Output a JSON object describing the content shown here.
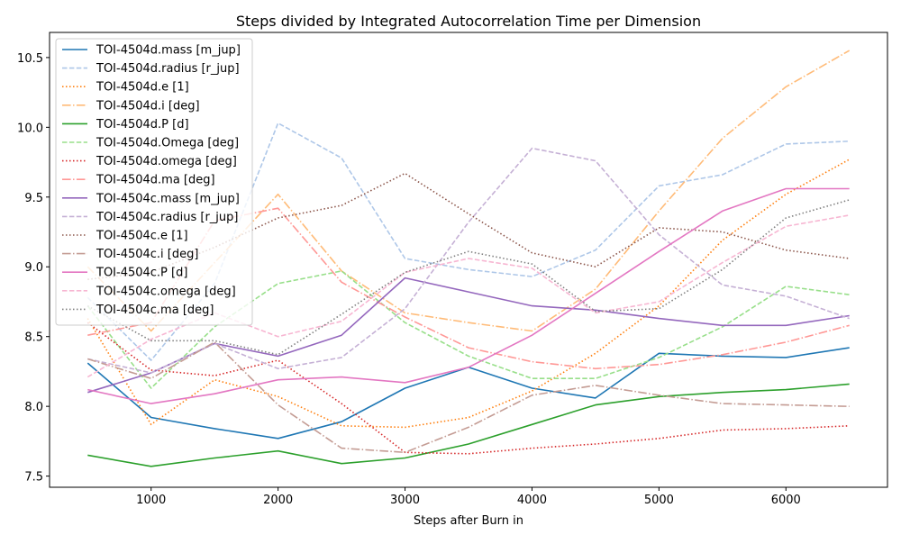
{
  "chart_data": {
    "type": "line",
    "title": "Steps divided by Integrated Autocorrelation Time per Dimension",
    "xlabel": "Steps after Burn in",
    "ylabel": "",
    "xlim": [
      200,
      6800
    ],
    "ylim": [
      7.42,
      10.68
    ],
    "xticks": [
      1000,
      2000,
      3000,
      4000,
      5000,
      6000
    ],
    "yticks": [
      7.5,
      8.0,
      8.5,
      9.0,
      9.5,
      10.0,
      10.5
    ],
    "grid": false,
    "legend_position": "upper-left",
    "x": [
      500,
      1000,
      1500,
      2000,
      2500,
      3000,
      3500,
      4000,
      4500,
      5000,
      5500,
      6000,
      6500
    ],
    "series": [
      {
        "name": "TOI-4504d.mass [m_jup]",
        "color": "#1f77b4",
        "dash": "solid",
        "values": [
          8.31,
          7.92,
          7.84,
          7.77,
          7.89,
          8.13,
          8.28,
          8.13,
          8.06,
          8.38,
          8.36,
          8.35,
          8.42
        ]
      },
      {
        "name": "TOI-4504d.radius [r_jup]",
        "color": "#aec7e8",
        "dash": "dashed",
        "values": [
          8.78,
          8.33,
          8.88,
          10.03,
          9.78,
          9.06,
          8.98,
          8.93,
          9.12,
          9.58,
          9.66,
          9.88,
          9.9
        ]
      },
      {
        "name": "TOI-4504d.e [1]",
        "color": "#ff7f0e",
        "dash": "dotted",
        "values": [
          8.63,
          7.87,
          8.19,
          8.07,
          7.86,
          7.85,
          7.92,
          8.11,
          8.38,
          8.72,
          9.19,
          9.52,
          9.77
        ]
      },
      {
        "name": "TOI-4504d.i [deg]",
        "color": "#ffbb78",
        "dash": "dashdot",
        "values": [
          9.0,
          8.54,
          9.03,
          9.52,
          8.97,
          8.67,
          8.6,
          8.54,
          8.84,
          9.4,
          9.92,
          10.29,
          10.55
        ]
      },
      {
        "name": "TOI-4504d.P [d]",
        "color": "#2ca02c",
        "dash": "solid",
        "values": [
          7.65,
          7.57,
          7.63,
          7.68,
          7.59,
          7.63,
          7.73,
          7.87,
          8.01,
          8.07,
          8.1,
          8.12,
          8.16
        ]
      },
      {
        "name": "TOI-4504d.Omega [deg]",
        "color": "#98df8a",
        "dash": "dashed",
        "values": [
          8.72,
          8.13,
          8.57,
          8.88,
          8.97,
          8.6,
          8.36,
          8.2,
          8.2,
          8.35,
          8.57,
          8.86,
          8.8
        ]
      },
      {
        "name": "TOI-4504d.omega [deg]",
        "color": "#d62728",
        "dash": "dotted",
        "values": [
          8.6,
          8.26,
          8.22,
          8.33,
          8.02,
          7.67,
          7.66,
          7.7,
          7.73,
          7.77,
          7.83,
          7.84,
          7.86
        ]
      },
      {
        "name": "TOI-4504d.ma [deg]",
        "color": "#ff9896",
        "dash": "dashdot",
        "values": [
          8.51,
          8.6,
          9.33,
          9.42,
          8.89,
          8.64,
          8.42,
          8.32,
          8.27,
          8.3,
          8.37,
          8.46,
          8.58
        ]
      },
      {
        "name": "TOI-4504c.mass [m_jup]",
        "color": "#9467bd",
        "dash": "solid",
        "values": [
          8.1,
          8.24,
          8.45,
          8.36,
          8.51,
          8.92,
          8.82,
          8.72,
          8.69,
          8.63,
          8.58,
          8.58,
          8.65
        ]
      },
      {
        "name": "TOI-4504c.radius [r_jup]",
        "color": "#c5b0d5",
        "dash": "dashed",
        "values": [
          8.34,
          8.24,
          8.45,
          8.27,
          8.35,
          8.7,
          9.32,
          9.85,
          9.76,
          9.23,
          8.87,
          8.79,
          8.63
        ]
      },
      {
        "name": "TOI-4504c.e [1]",
        "color": "#8c564b",
        "dash": "dotted",
        "values": [
          8.91,
          8.96,
          9.14,
          9.35,
          9.44,
          9.67,
          9.38,
          9.1,
          9.0,
          9.28,
          9.25,
          9.12,
          9.06
        ]
      },
      {
        "name": "TOI-4504c.i [deg]",
        "color": "#c49c94",
        "dash": "dashdot",
        "values": [
          8.34,
          8.2,
          8.46,
          8.01,
          7.7,
          7.67,
          7.85,
          8.08,
          8.15,
          8.08,
          8.02,
          8.01,
          8.0
        ]
      },
      {
        "name": "TOI-4504c.P [d]",
        "color": "#e377c2",
        "dash": "solid",
        "values": [
          8.12,
          8.02,
          8.09,
          8.19,
          8.21,
          8.17,
          8.28,
          8.51,
          8.81,
          9.11,
          9.4,
          9.56,
          9.56
        ]
      },
      {
        "name": "TOI-4504c.omega [deg]",
        "color": "#f7b6d2",
        "dash": "dashed",
        "values": [
          8.21,
          8.48,
          8.67,
          8.5,
          8.61,
          8.96,
          9.06,
          8.99,
          8.67,
          8.75,
          9.03,
          9.29,
          9.37
        ]
      },
      {
        "name": "TOI-4504c.ma [deg]",
        "color": "#7f7f7f",
        "dash": "dotted",
        "values": [
          8.72,
          8.47,
          8.47,
          8.37,
          8.66,
          8.96,
          9.11,
          9.02,
          8.68,
          8.7,
          8.98,
          9.35,
          9.48
        ]
      }
    ]
  }
}
